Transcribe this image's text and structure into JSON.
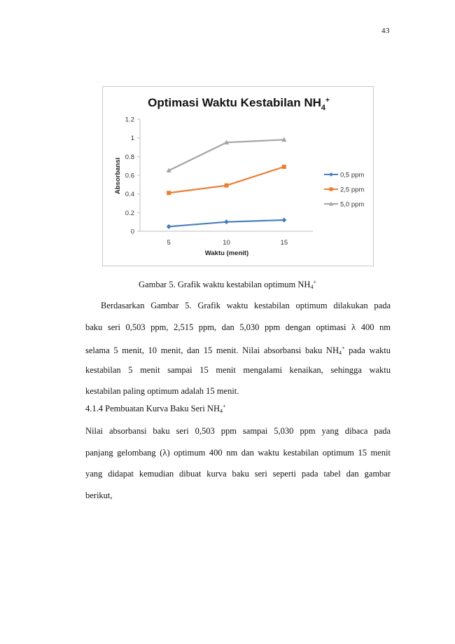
{
  "page": {
    "number": "43"
  },
  "chart_data": {
    "type": "line",
    "title": "Optimasi Waktu Kestabilan NH",
    "title_subscript": "4",
    "title_superscript": "+",
    "xlabel": "Waktu (menit)",
    "ylabel": "Absorbansi",
    "categories": [
      "5",
      "10",
      "15"
    ],
    "x": [
      5,
      10,
      15
    ],
    "ylim": [
      0,
      1.2
    ],
    "yticks": [
      "0",
      "0.2",
      "0.4",
      "0.6",
      "0.8",
      "1",
      "1.2"
    ],
    "grid": false,
    "legend_position": "right",
    "series": [
      {
        "name": "0,5 ppm",
        "values": [
          0.05,
          0.1,
          0.12
        ],
        "color": "#4a7ebf",
        "marker": "diamond"
      },
      {
        "name": "2,5 ppm",
        "values": [
          0.41,
          0.49,
          0.69
        ],
        "color": "#ed7d31",
        "marker": "square"
      },
      {
        "name": "5,0 ppm",
        "values": [
          0.65,
          0.95,
          0.98
        ],
        "color": "#a5a5a5",
        "marker": "triangle"
      }
    ]
  },
  "figure": {
    "caption_main": "Gambar 5. Grafik waktu kestabilan optimum NH",
    "caption_sub": "4",
    "caption_sup": "+"
  },
  "paragraph1": {
    "line1": "Berdasarkan Gambar 5. Grafik waktu kestabilan optimum dilakukan pada",
    "line2": "baku seri 0,503 ppm, 2,515 ppm, dan 5,030 ppm dengan optimasi λ 400 nm",
    "line3_a": "selama 5 menit, 10 menit, dan 15 menit. Nilai absorbansi baku NH",
    "line3_sub": "4",
    "line3_sup": "+",
    "line3_b": " pada waktu",
    "line4": "kestabilan 5 menit sampai 15 menit mengalami kenaikan, sehingga waktu",
    "line5": "kestabilan paling optimum adalah 15 menit."
  },
  "section": {
    "heading_main": "4.1.4  Pembuatan Kurva Baku Seri NH",
    "heading_sub": "4",
    "heading_sup": "+"
  },
  "paragraph2": {
    "line1": "Nilai absorbansi baku seri 0,503 ppm sampai 5,030 ppm yang dibaca pada",
    "line2": "panjang gelombang (λ) optimum 400 nm dan waktu kestabilan optimum 15 menit",
    "line3": "yang didapat kemudian dibuat kurva baku seri seperti pada tabel dan gambar",
    "line4": "berikut,"
  }
}
